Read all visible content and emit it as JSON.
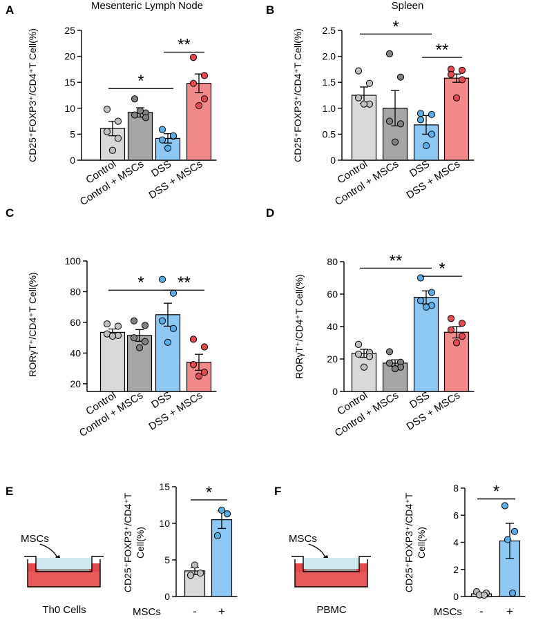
{
  "colors": {
    "control": "#d9d9d9",
    "control_mscs": "#a6a6a6",
    "dss": "#8ec8f4",
    "dss_mscs": "#f28a8a",
    "point_control": "#bfbfbf",
    "point_control_mscs": "#808080",
    "point_dss": "#5aaee6",
    "point_dss_mscs": "#e5484d",
    "medium": "#cfe8f0",
    "cells": "#e0635e"
  },
  "chart_data": [
    {
      "panel": "A",
      "type": "bar",
      "title": "Mesenteric Lymph Node",
      "ylabel": "CD25⁺FOXP3⁺/CD4⁺T Cell(%)",
      "categories": [
        "Control",
        "Control + MSCs",
        "DSS",
        "DSS + MSCs"
      ],
      "values": [
        6.1,
        9.2,
        4.2,
        14.8
      ],
      "errors": [
        1.4,
        0.9,
        0.9,
        1.8
      ],
      "points": [
        [
          9.8,
          7.5,
          5.5,
          4.2,
          1.9
        ],
        [
          11.8,
          9.1,
          8.7,
          8.2,
          9.5
        ],
        [
          5.9,
          4.6,
          3.9,
          4.7,
          2.3
        ],
        [
          19.8,
          16.3,
          14.8,
          11.8,
          10.5
        ]
      ],
      "ylim": [
        0,
        25
      ],
      "yticks": [
        "0",
        "5",
        "10",
        "15",
        "20",
        "25"
      ],
      "sig": [
        {
          "from": 0,
          "to": 2,
          "label": "*",
          "y": 13.8
        },
        {
          "from": 2,
          "to": 3,
          "label": "**",
          "y": 20.8
        }
      ]
    },
    {
      "panel": "B",
      "type": "bar",
      "title": "Spleen",
      "ylabel": "CD25⁺FOXP3⁺/CD4⁺T Cell(%)",
      "categories": [
        "Control",
        "Control + MSCs",
        "DSS",
        "DSS + MSCs"
      ],
      "values": [
        1.25,
        1.0,
        0.68,
        1.58
      ],
      "errors": [
        0.16,
        0.34,
        0.18,
        0.08
      ],
      "points": [
        [
          1.72,
          1.48,
          1.2,
          1.08,
          1.08
        ],
        [
          2.05,
          1.6,
          0.75,
          0.7,
          0.35
        ],
        [
          0.9,
          0.88,
          0.78,
          0.5,
          0.28
        ],
        [
          1.75,
          1.73,
          1.65,
          1.55,
          1.2
        ]
      ],
      "ylim": [
        0,
        2.5
      ],
      "yticks": [
        "0",
        "0.5",
        "1.0",
        "1.5",
        "2.0",
        "2.5"
      ],
      "sig": [
        {
          "from": 0,
          "to": 2,
          "label": "*",
          "y": 2.43
        },
        {
          "from": 2,
          "to": 3,
          "label": "**",
          "y": 1.98
        }
      ]
    },
    {
      "panel": "C",
      "type": "bar",
      "title": "",
      "ylabel": "RORγT⁺/CD4⁺T Cell(%)",
      "categories": [
        "Control",
        "Control + MSCs",
        "DSS",
        "DSS + MSCs"
      ],
      "values": [
        53.5,
        51.5,
        65.0,
        34.0
      ],
      "errors": [
        2.2,
        3.8,
        7.5,
        5.2
      ],
      "points": [
        [
          59,
          57.5,
          52.5,
          51.5,
          51
        ],
        [
          61,
          58,
          50,
          47.5,
          43.5
        ],
        [
          88,
          79,
          61,
          56,
          47
        ],
        [
          49,
          44,
          32.5,
          27.5,
          25
        ]
      ],
      "ylim": [
        15,
        100
      ],
      "ymin_tick": 20,
      "yticks": [
        "20",
        "40",
        "60",
        "80",
        "100"
      ],
      "sig": [
        {
          "from": 0,
          "to": 2,
          "label": "*",
          "y": 81
        },
        {
          "from": 2,
          "to": 3,
          "label": "**",
          "y": 81
        }
      ]
    },
    {
      "panel": "D",
      "type": "bar",
      "title": "",
      "ylabel": "RORγT⁺/CD4⁺T Cell(%)",
      "categories": [
        "Control",
        "Control + MSCs",
        "DSS",
        "DSS + MSCs"
      ],
      "values": [
        23.5,
        17.5,
        58.0,
        36.5
      ],
      "errors": [
        2.5,
        2.0,
        4.0,
        3.5
      ],
      "points": [
        [
          29,
          24,
          23,
          21.5,
          15
        ],
        [
          24.5,
          18,
          17.5,
          15,
          14
        ],
        [
          70,
          61,
          56,
          53,
          52
        ],
        [
          45,
          42,
          38,
          34,
          30
        ]
      ],
      "ylim": [
        0,
        80
      ],
      "yticks": [
        "0",
        "20",
        "40",
        "60",
        "80"
      ],
      "sig": [
        {
          "from": 0,
          "to": 2,
          "label": "**",
          "y": 76
        },
        {
          "from": 2,
          "to": 3,
          "label": "*",
          "y": 71
        }
      ]
    },
    {
      "panel": "E",
      "type": "bar",
      "title": "",
      "ylabel_lines": [
        "CD25⁺FOXP3⁺/CD4⁺T",
        "Cell(%)"
      ],
      "xlabel": "MSCs",
      "categories": [
        "-",
        "+"
      ],
      "values": [
        3.5,
        10.5
      ],
      "errors": [
        0.5,
        1.2
      ],
      "points": [
        [
          4.3,
          3.2,
          2.9
        ],
        [
          11.8,
          11.3,
          8.3
        ]
      ],
      "ylim": [
        0,
        15
      ],
      "yticks": [
        "0",
        "5",
        "10",
        "15"
      ],
      "sig": [
        {
          "from": 0,
          "to": 1,
          "label": "*",
          "y": 13.2
        }
      ]
    },
    {
      "panel": "F",
      "type": "bar",
      "title": "",
      "ylabel_lines": [
        "CD25⁺FOXP3⁺/CD4⁺T",
        "Cell(%)"
      ],
      "xlabel": "MSCs",
      "categories": [
        "-",
        "+"
      ],
      "values": [
        0.2,
        4.1
      ],
      "errors": [
        0.07,
        1.3
      ],
      "points": [
        [
          0.35,
          0.25,
          0.12,
          0.1
        ],
        [
          6.7,
          4.8,
          4.2,
          0.25
        ]
      ],
      "ylim": [
        0,
        8
      ],
      "yticks": [
        "0",
        "2",
        "4",
        "6",
        "8"
      ],
      "sig": [
        {
          "from": 0,
          "to": 1,
          "label": "*",
          "y": 7.2
        }
      ]
    }
  ],
  "diagrams": {
    "E": {
      "arrow_label": "MSCs",
      "caption": "Th0 Cells"
    },
    "F": {
      "arrow_label": "MSCs",
      "caption": "PBMC"
    }
  }
}
